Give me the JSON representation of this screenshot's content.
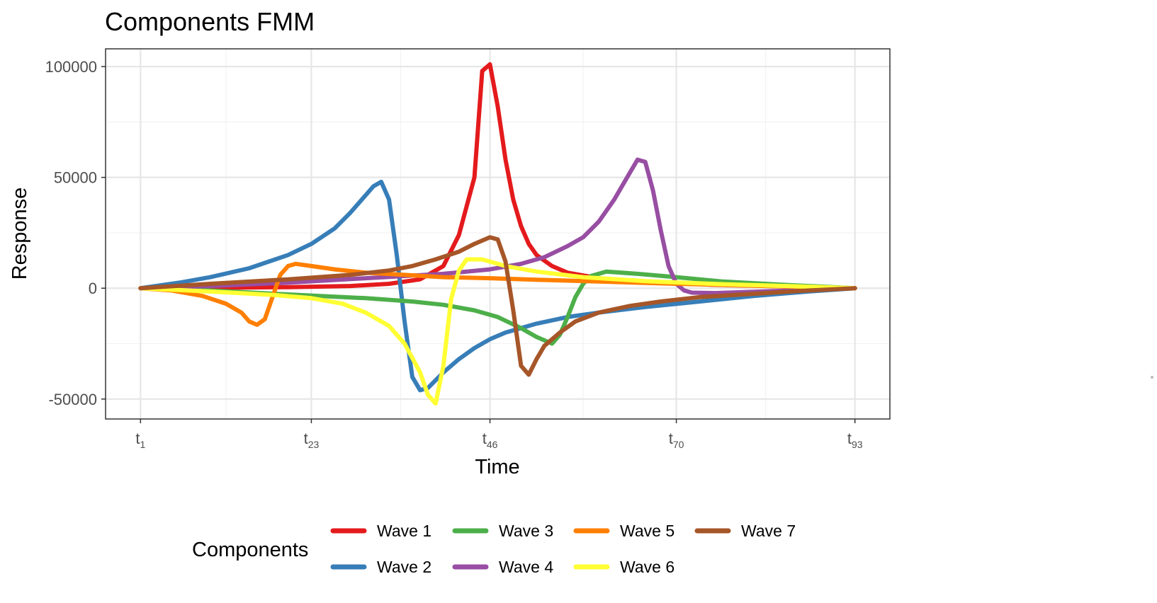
{
  "chart_data": {
    "type": "line",
    "title": "Components FMM",
    "xlabel": "Time",
    "ylabel": "Response",
    "x_ticks": [
      {
        "x": 1,
        "base": "t",
        "sub": "1"
      },
      {
        "x": 23,
        "base": "t",
        "sub": "23"
      },
      {
        "x": 46,
        "base": "t",
        "sub": "46"
      },
      {
        "x": 70,
        "base": "t",
        "sub": "70"
      },
      {
        "x": 93,
        "base": "t",
        "sub": "93"
      }
    ],
    "xlim": [
      -3.5,
      97.5
    ],
    "y_ticks": [
      {
        "value": 100000,
        "label": "100000"
      },
      {
        "value": 50000,
        "label": "50000"
      },
      {
        "value": 0,
        "label": "0"
      },
      {
        "value": -50000,
        "label": "-50000"
      }
    ],
    "ylim": [
      -59000,
      108000
    ],
    "grid": true,
    "legend_title": "Components",
    "legend_position": "bottom",
    "series": [
      {
        "name": "Wave 1",
        "color": "#e41a1c",
        "points": [
          [
            1,
            0
          ],
          [
            10,
            200
          ],
          [
            20,
            500
          ],
          [
            28,
            1000
          ],
          [
            33,
            2000
          ],
          [
            37,
            4000
          ],
          [
            40,
            10000
          ],
          [
            42,
            24000
          ],
          [
            44,
            50000
          ],
          [
            45,
            98000
          ],
          [
            46,
            101000
          ],
          [
            47,
            82000
          ],
          [
            48,
            58000
          ],
          [
            49,
            40000
          ],
          [
            50,
            28000
          ],
          [
            51,
            20000
          ],
          [
            52,
            15000
          ],
          [
            54,
            10000
          ],
          [
            56,
            7000
          ],
          [
            60,
            4500
          ],
          [
            66,
            2800
          ],
          [
            75,
            1500
          ],
          [
            85,
            700
          ],
          [
            93,
            0
          ]
        ]
      },
      {
        "name": "Wave 2",
        "color": "#377eb8",
        "points": [
          [
            1,
            0
          ],
          [
            6,
            2500
          ],
          [
            10,
            5000
          ],
          [
            15,
            9000
          ],
          [
            20,
            15000
          ],
          [
            23,
            20000
          ],
          [
            26,
            27000
          ],
          [
            28,
            34000
          ],
          [
            30,
            42000
          ],
          [
            31,
            46000
          ],
          [
            32,
            48000
          ],
          [
            33,
            40000
          ],
          [
            34,
            15000
          ],
          [
            35,
            -15000
          ],
          [
            36,
            -40000
          ],
          [
            37,
            -46000
          ],
          [
            38,
            -45000
          ],
          [
            40,
            -38000
          ],
          [
            42,
            -32000
          ],
          [
            44,
            -27000
          ],
          [
            46,
            -23000
          ],
          [
            48,
            -20000
          ],
          [
            52,
            -16000
          ],
          [
            56,
            -13000
          ],
          [
            60,
            -11000
          ],
          [
            66,
            -8500
          ],
          [
            73,
            -6000
          ],
          [
            80,
            -3500
          ],
          [
            87,
            -1500
          ],
          [
            93,
            0
          ]
        ]
      },
      {
        "name": "Wave 3",
        "color": "#4daf4a",
        "points": [
          [
            1,
            0
          ],
          [
            10,
            -1000
          ],
          [
            20,
            -2800
          ],
          [
            30,
            -4500
          ],
          [
            36,
            -6000
          ],
          [
            40,
            -7500
          ],
          [
            44,
            -10000
          ],
          [
            47,
            -13000
          ],
          [
            50,
            -18000
          ],
          [
            52,
            -22000
          ],
          [
            54,
            -25000
          ],
          [
            55,
            -21000
          ],
          [
            56,
            -13000
          ],
          [
            57,
            -4000
          ],
          [
            58,
            2000
          ],
          [
            59,
            5500
          ],
          [
            61,
            7500
          ],
          [
            65,
            6500
          ],
          [
            70,
            5000
          ],
          [
            76,
            3000
          ],
          [
            84,
            1500
          ],
          [
            93,
            0
          ]
        ]
      },
      {
        "name": "Wave 4",
        "color": "#984ea3",
        "points": [
          [
            1,
            0
          ],
          [
            10,
            1000
          ],
          [
            20,
            2500
          ],
          [
            30,
            4500
          ],
          [
            40,
            6500
          ],
          [
            46,
            8500
          ],
          [
            50,
            11000
          ],
          [
            53,
            14000
          ],
          [
            56,
            19000
          ],
          [
            58,
            23000
          ],
          [
            60,
            30000
          ],
          [
            62,
            40000
          ],
          [
            64,
            52000
          ],
          [
            65,
            58000
          ],
          [
            66,
            57000
          ],
          [
            67,
            44000
          ],
          [
            68,
            26000
          ],
          [
            69,
            10000
          ],
          [
            70,
            2000
          ],
          [
            71,
            -1000
          ],
          [
            72,
            -2000
          ],
          [
            75,
            -2200
          ],
          [
            80,
            -1600
          ],
          [
            86,
            -900
          ],
          [
            93,
            0
          ]
        ]
      },
      {
        "name": "Wave 5",
        "color": "#ff7f00",
        "points": [
          [
            1,
            0
          ],
          [
            5,
            -1000
          ],
          [
            9,
            -3500
          ],
          [
            12,
            -7000
          ],
          [
            14,
            -11000
          ],
          [
            15,
            -15000
          ],
          [
            16,
            -16500
          ],
          [
            17,
            -14000
          ],
          [
            18,
            -4000
          ],
          [
            19,
            6000
          ],
          [
            20,
            10000
          ],
          [
            21,
            11000
          ],
          [
            23,
            10000
          ],
          [
            26,
            8500
          ],
          [
            30,
            7000
          ],
          [
            35,
            6000
          ],
          [
            40,
            5000
          ],
          [
            46,
            4500
          ],
          [
            52,
            3800
          ],
          [
            60,
            3000
          ],
          [
            70,
            2000
          ],
          [
            80,
            1200
          ],
          [
            93,
            0
          ]
        ]
      },
      {
        "name": "Wave 6",
        "color": "#ffff33",
        "points": [
          [
            1,
            0
          ],
          [
            10,
            -1500
          ],
          [
            18,
            -3000
          ],
          [
            23,
            -4500
          ],
          [
            27,
            -7000
          ],
          [
            30,
            -11000
          ],
          [
            33,
            -17000
          ],
          [
            35,
            -25000
          ],
          [
            37,
            -38000
          ],
          [
            38,
            -48000
          ],
          [
            39,
            -52000
          ],
          [
            40,
            -35000
          ],
          [
            41,
            -5000
          ],
          [
            42,
            8000
          ],
          [
            43,
            13000
          ],
          [
            45,
            13000
          ],
          [
            48,
            10000
          ],
          [
            52,
            7500
          ],
          [
            58,
            5000
          ],
          [
            66,
            3200
          ],
          [
            76,
            1800
          ],
          [
            85,
            900
          ],
          [
            93,
            0
          ]
        ]
      },
      {
        "name": "Wave 7",
        "color": "#a65628",
        "points": [
          [
            1,
            0
          ],
          [
            10,
            2000
          ],
          [
            20,
            4000
          ],
          [
            28,
            6000
          ],
          [
            33,
            8000
          ],
          [
            36,
            10000
          ],
          [
            39,
            13000
          ],
          [
            42,
            16500
          ],
          [
            44,
            20000
          ],
          [
            46,
            23000
          ],
          [
            47,
            22000
          ],
          [
            48,
            12000
          ],
          [
            49,
            -10000
          ],
          [
            50,
            -35000
          ],
          [
            51,
            -39000
          ],
          [
            52,
            -32000
          ],
          [
            53,
            -26000
          ],
          [
            55,
            -20000
          ],
          [
            57,
            -15000
          ],
          [
            60,
            -11000
          ],
          [
            64,
            -8000
          ],
          [
            68,
            -6000
          ],
          [
            73,
            -4000
          ],
          [
            80,
            -2500
          ],
          [
            86,
            -1200
          ],
          [
            93,
            0
          ]
        ]
      }
    ]
  }
}
